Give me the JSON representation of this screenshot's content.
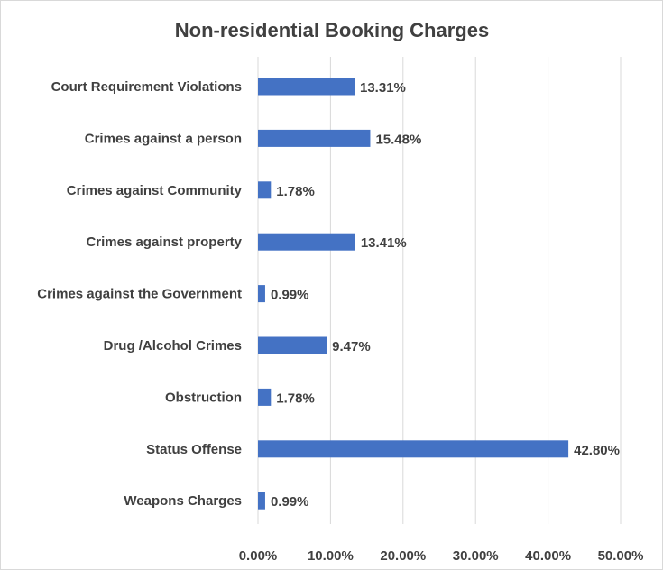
{
  "chart_data": {
    "type": "bar",
    "orientation": "horizontal",
    "title": "Non-residential Booking Charges",
    "categories": [
      "Court Requirement Violations",
      "Crimes against a person",
      "Crimes against Community",
      "Crimes against property",
      "Crimes against the Government",
      "Drug /Alcohol Crimes",
      "Obstruction",
      "Status Offense",
      "Weapons Charges"
    ],
    "values": [
      13.31,
      15.48,
      1.78,
      13.41,
      0.99,
      9.47,
      1.78,
      42.8,
      0.99
    ],
    "data_labels": [
      "13.31%",
      "15.48%",
      "1.78%",
      "13.41%",
      "0.99%",
      "9.47%",
      "1.78%",
      "42.80%",
      "0.99%"
    ],
    "x_ticks": [
      0,
      10,
      20,
      30,
      40,
      50
    ],
    "x_tick_labels": [
      "0.00%",
      "10.00%",
      "20.00%",
      "30.00%",
      "40.00%",
      "50.00%"
    ],
    "xlim": [
      0,
      50
    ],
    "xlabel": "",
    "ylabel": "",
    "grid": "vertical",
    "legend": "none",
    "bar_color": "#4472C4"
  }
}
